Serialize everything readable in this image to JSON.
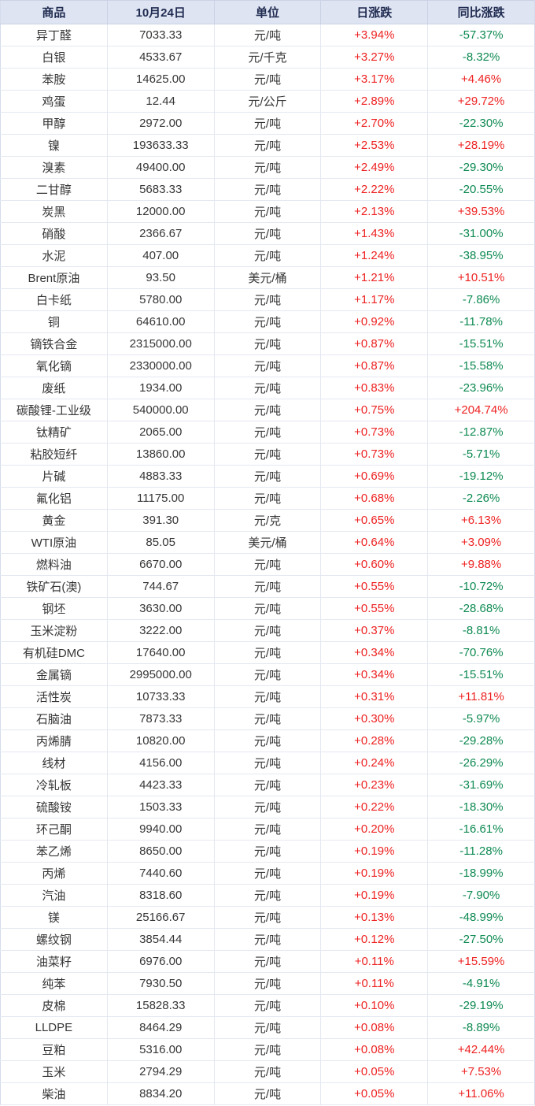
{
  "colors": {
    "positive": "#ee2222",
    "negative": "#0e8a52",
    "header_bg": "#dee4f2",
    "header_text": "#1f2b50",
    "border": "#e4e8f1"
  },
  "chart_data": {
    "type": "table",
    "columns": [
      "商品",
      "10月24日",
      "单位",
      "日涨跌",
      "同比涨跌"
    ],
    "rows": [
      [
        "异丁醛",
        "7033.33",
        "元/吨",
        "+3.94%",
        "-57.37%"
      ],
      [
        "白银",
        "4533.67",
        "元/千克",
        "+3.27%",
        "-8.32%"
      ],
      [
        "苯胺",
        "14625.00",
        "元/吨",
        "+3.17%",
        "+4.46%"
      ],
      [
        "鸡蛋",
        "12.44",
        "元/公斤",
        "+2.89%",
        "+29.72%"
      ],
      [
        "甲醇",
        "2972.00",
        "元/吨",
        "+2.70%",
        "-22.30%"
      ],
      [
        "镍",
        "193633.33",
        "元/吨",
        "+2.53%",
        "+28.19%"
      ],
      [
        "溴素",
        "49400.00",
        "元/吨",
        "+2.49%",
        "-29.30%"
      ],
      [
        "二甘醇",
        "5683.33",
        "元/吨",
        "+2.22%",
        "-20.55%"
      ],
      [
        "炭黑",
        "12000.00",
        "元/吨",
        "+2.13%",
        "+39.53%"
      ],
      [
        "硝酸",
        "2366.67",
        "元/吨",
        "+1.43%",
        "-31.00%"
      ],
      [
        "水泥",
        "407.00",
        "元/吨",
        "+1.24%",
        "-38.95%"
      ],
      [
        "Brent原油",
        "93.50",
        "美元/桶",
        "+1.21%",
        "+10.51%"
      ],
      [
        "白卡纸",
        "5780.00",
        "元/吨",
        "+1.17%",
        "-7.86%"
      ],
      [
        "铜",
        "64610.00",
        "元/吨",
        "+0.92%",
        "-11.78%"
      ],
      [
        "镝铁合金",
        "2315000.00",
        "元/吨",
        "+0.87%",
        "-15.51%"
      ],
      [
        "氧化镝",
        "2330000.00",
        "元/吨",
        "+0.87%",
        "-15.58%"
      ],
      [
        "废纸",
        "1934.00",
        "元/吨",
        "+0.83%",
        "-23.96%"
      ],
      [
        "碳酸锂-工业级",
        "540000.00",
        "元/吨",
        "+0.75%",
        "+204.74%"
      ],
      [
        "钛精矿",
        "2065.00",
        "元/吨",
        "+0.73%",
        "-12.87%"
      ],
      [
        "粘胶短纤",
        "13860.00",
        "元/吨",
        "+0.73%",
        "-5.71%"
      ],
      [
        "片碱",
        "4883.33",
        "元/吨",
        "+0.69%",
        "-19.12%"
      ],
      [
        "氟化铝",
        "11175.00",
        "元/吨",
        "+0.68%",
        "-2.26%"
      ],
      [
        "黄金",
        "391.30",
        "元/克",
        "+0.65%",
        "+6.13%"
      ],
      [
        "WTI原油",
        "85.05",
        "美元/桶",
        "+0.64%",
        "+3.09%"
      ],
      [
        "燃料油",
        "6670.00",
        "元/吨",
        "+0.60%",
        "+9.88%"
      ],
      [
        "铁矿石(澳)",
        "744.67",
        "元/吨",
        "+0.55%",
        "-10.72%"
      ],
      [
        "钢坯",
        "3630.00",
        "元/吨",
        "+0.55%",
        "-28.68%"
      ],
      [
        "玉米淀粉",
        "3222.00",
        "元/吨",
        "+0.37%",
        "-8.81%"
      ],
      [
        "有机硅DMC",
        "17640.00",
        "元/吨",
        "+0.34%",
        "-70.76%"
      ],
      [
        "金属镝",
        "2995000.00",
        "元/吨",
        "+0.34%",
        "-15.51%"
      ],
      [
        "活性炭",
        "10733.33",
        "元/吨",
        "+0.31%",
        "+11.81%"
      ],
      [
        "石脑油",
        "7873.33",
        "元/吨",
        "+0.30%",
        "-5.97%"
      ],
      [
        "丙烯腈",
        "10820.00",
        "元/吨",
        "+0.28%",
        "-29.28%"
      ],
      [
        "线材",
        "4156.00",
        "元/吨",
        "+0.24%",
        "-26.29%"
      ],
      [
        "冷轧板",
        "4423.33",
        "元/吨",
        "+0.23%",
        "-31.69%"
      ],
      [
        "硫酸铵",
        "1503.33",
        "元/吨",
        "+0.22%",
        "-18.30%"
      ],
      [
        "环己酮",
        "9940.00",
        "元/吨",
        "+0.20%",
        "-16.61%"
      ],
      [
        "苯乙烯",
        "8650.00",
        "元/吨",
        "+0.19%",
        "-11.28%"
      ],
      [
        "丙烯",
        "7440.60",
        "元/吨",
        "+0.19%",
        "-18.99%"
      ],
      [
        "汽油",
        "8318.60",
        "元/吨",
        "+0.19%",
        "-7.90%"
      ],
      [
        "镁",
        "25166.67",
        "元/吨",
        "+0.13%",
        "-48.99%"
      ],
      [
        "螺纹钢",
        "3854.44",
        "元/吨",
        "+0.12%",
        "-27.50%"
      ],
      [
        "油菜籽",
        "6976.00",
        "元/吨",
        "+0.11%",
        "+15.59%"
      ],
      [
        "纯苯",
        "7930.50",
        "元/吨",
        "+0.11%",
        "-4.91%"
      ],
      [
        "皮棉",
        "15828.33",
        "元/吨",
        "+0.10%",
        "-29.19%"
      ],
      [
        "LLDPE",
        "8464.29",
        "元/吨",
        "+0.08%",
        "-8.89%"
      ],
      [
        "豆粕",
        "5316.00",
        "元/吨",
        "+0.08%",
        "+42.44%"
      ],
      [
        "玉米",
        "2794.29",
        "元/吨",
        "+0.05%",
        "+7.53%"
      ],
      [
        "柴油",
        "8834.20",
        "元/吨",
        "+0.05%",
        "+11.06%"
      ]
    ]
  }
}
